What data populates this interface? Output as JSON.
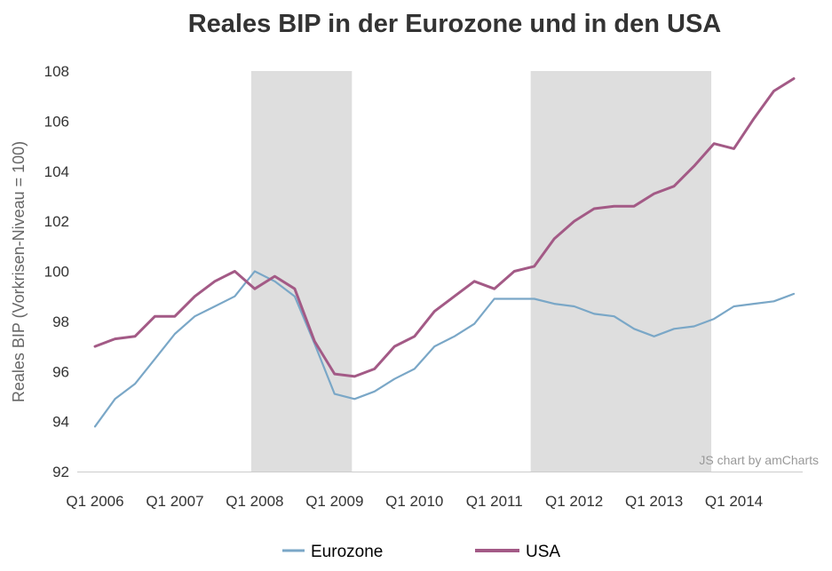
{
  "chart_data": {
    "type": "line",
    "title": "Reales BIP in der Eurozone und in den USA",
    "xlabel": "",
    "ylabel": "Reales BIP (Vorkrisen-Niveau = 100)",
    "ylim": [
      92,
      108
    ],
    "ytick_values": [
      92,
      94,
      96,
      98,
      100,
      102,
      104,
      106,
      108
    ],
    "x_start_year": 2006,
    "quarters_count": 36,
    "x_tick_labels": [
      "Q1 2006",
      "Q1 2007",
      "Q1 2008",
      "Q1 2009",
      "Q1 2010",
      "Q1 2011",
      "Q1 2012",
      "Q1 2013",
      "Q1 2014"
    ],
    "shaded_periods": [
      {
        "start_quarter_index": 8,
        "end_quarter_index": 13
      },
      {
        "start_quarter_index": 22,
        "end_quarter_index": 31
      }
    ],
    "series": [
      {
        "name": "Eurozone",
        "color": "#7aa7c7",
        "values": [
          93.8,
          94.9,
          95.5,
          96.5,
          97.5,
          98.2,
          98.6,
          99.0,
          100.0,
          99.6,
          99.0,
          97.1,
          95.1,
          94.9,
          95.2,
          95.7,
          96.1,
          97.0,
          97.4,
          97.9,
          98.9,
          98.9,
          98.9,
          98.7,
          98.6,
          98.3,
          98.2,
          97.7,
          97.4,
          97.7,
          97.8,
          98.1,
          98.6,
          98.7,
          98.8,
          99.1
        ]
      },
      {
        "name": "USA",
        "color": "#a35a86",
        "values": [
          97.0,
          97.3,
          97.4,
          98.2,
          98.2,
          99.0,
          99.6,
          100.0,
          99.3,
          99.8,
          99.3,
          97.2,
          95.9,
          95.8,
          96.1,
          97.0,
          97.4,
          98.4,
          99.0,
          99.6,
          99.3,
          100.0,
          100.2,
          101.3,
          102.0,
          102.5,
          102.6,
          102.6,
          103.1,
          103.4,
          104.2,
          105.1,
          104.9,
          106.1,
          107.2,
          107.7
        ]
      }
    ],
    "credit": "JS chart by amCharts"
  }
}
